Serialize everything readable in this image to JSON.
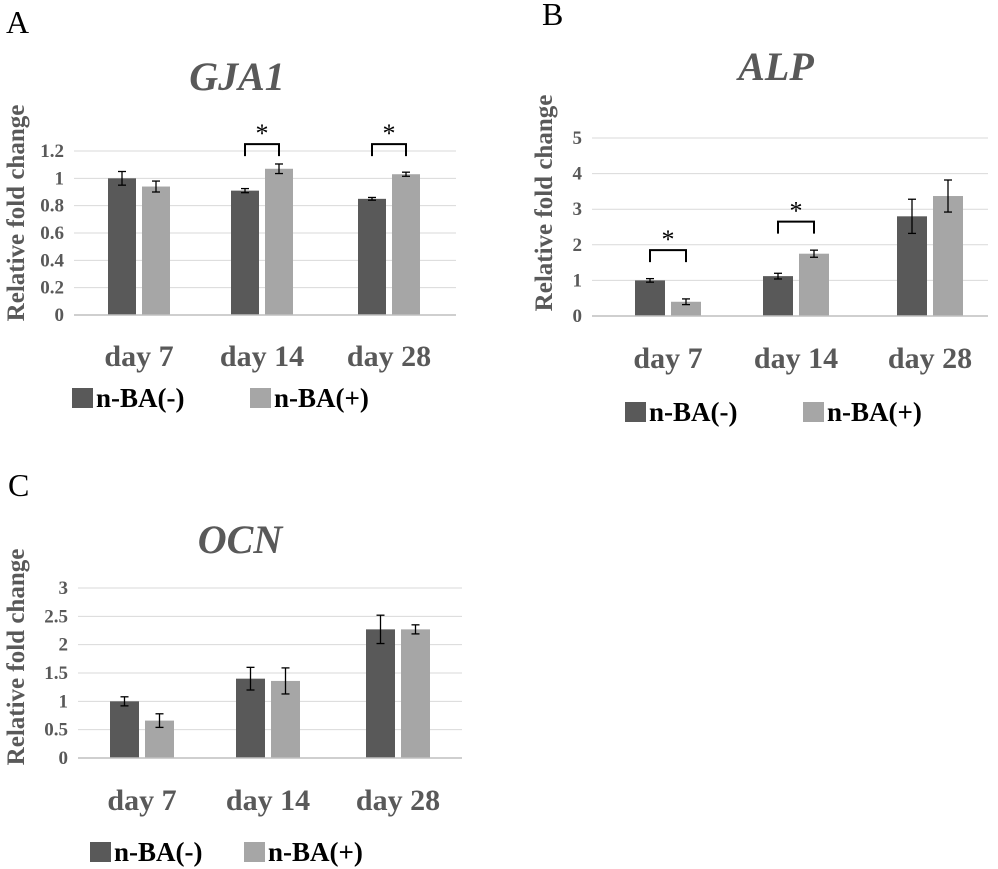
{
  "legend_labels": [
    "n-BA(-)",
    "n-BA(+)"
  ],
  "chart_data": [
    {
      "panel": "A",
      "type": "bar",
      "title": "GJA1",
      "ylabel": "Relative fold change",
      "xlabel": "",
      "ylim": [
        0,
        1.2
      ],
      "yticks": [
        "0",
        "0.2",
        "0.4",
        "0.6",
        "0.8",
        "1",
        "1.2"
      ],
      "categories": [
        "day 7",
        "day 14",
        "day 28"
      ],
      "series": [
        {
          "name": "n-BA(-)",
          "color": "#595959",
          "values": [
            1.0,
            0.91,
            0.85
          ],
          "errors": [
            0.05,
            0.015,
            0.01
          ]
        },
        {
          "name": "n-BA(+)",
          "color": "#a6a6a6",
          "values": [
            0.94,
            1.07,
            1.03
          ],
          "errors": [
            0.04,
            0.035,
            0.015
          ]
        }
      ],
      "significance": [
        {
          "category": "day 14",
          "level": 1.25,
          "label": "*"
        },
        {
          "category": "day 28",
          "level": 1.25,
          "label": "*"
        }
      ]
    },
    {
      "panel": "B",
      "type": "bar",
      "title": "ALP",
      "ylabel": "Relative fold change",
      "xlabel": "",
      "ylim": [
        0,
        5
      ],
      "yticks": [
        "0",
        "1",
        "2",
        "3",
        "4",
        "5"
      ],
      "categories": [
        "day 7",
        "day 14",
        "day 28"
      ],
      "series": [
        {
          "name": "n-BA(-)",
          "color": "#595959",
          "values": [
            1.0,
            1.12,
            2.8
          ],
          "errors": [
            0.05,
            0.08,
            0.48
          ]
        },
        {
          "name": "n-BA(+)",
          "color": "#a6a6a6",
          "values": [
            0.4,
            1.75,
            3.37
          ],
          "errors": [
            0.08,
            0.1,
            0.45
          ]
        }
      ],
      "significance": [
        {
          "category": "day 7",
          "level": 1.85,
          "label": "*"
        },
        {
          "category": "day 14",
          "level": 2.65,
          "label": "*"
        }
      ]
    },
    {
      "panel": "C",
      "type": "bar",
      "title": "OCN",
      "ylabel": "Relative fold change",
      "xlabel": "",
      "ylim": [
        0,
        3
      ],
      "yticks": [
        "0",
        "0.5",
        "1",
        "1.5",
        "2",
        "2.5",
        "3"
      ],
      "categories": [
        "day 7",
        "day 14",
        "day 28"
      ],
      "series": [
        {
          "name": "n-BA(-)",
          "color": "#595959",
          "values": [
            1.0,
            1.4,
            2.27
          ],
          "errors": [
            0.08,
            0.2,
            0.25
          ]
        },
        {
          "name": "n-BA(+)",
          "color": "#a6a6a6",
          "values": [
            0.66,
            1.36,
            2.27
          ],
          "errors": [
            0.12,
            0.23,
            0.08
          ]
        }
      ],
      "significance": []
    }
  ]
}
